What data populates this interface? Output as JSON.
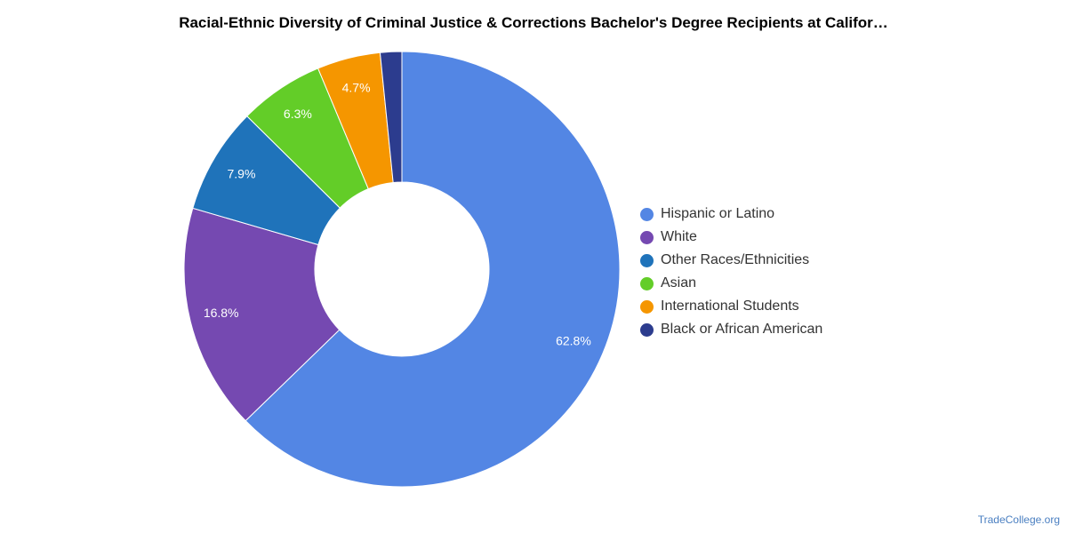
{
  "chart_data": {
    "type": "pie",
    "title": "Racial-Ethnic Diversity of Criminal Justice & Corrections Bachelor's Degree Recipients at Califor…",
    "hole": "donut",
    "legend_position": "right",
    "slices": [
      {
        "name": "Hispanic or Latino",
        "value": 62.8,
        "label": "62.8%",
        "color": "#5386e4"
      },
      {
        "name": "White",
        "value": 16.8,
        "label": "16.8%",
        "color": "#7549b1"
      },
      {
        "name": "Other Races/Ethnicities",
        "value": 7.9,
        "label": "7.9%",
        "color": "#1f73ba"
      },
      {
        "name": "Asian",
        "value": 6.3,
        "label": "6.3%",
        "color": "#63cd28"
      },
      {
        "name": "International Students",
        "value": 4.7,
        "label": "4.7%",
        "color": "#f59600"
      },
      {
        "name": "Black or African American",
        "value": 1.6,
        "label": "",
        "color": "#2c3c8e"
      }
    ]
  },
  "footer": {
    "credit": "TradeCollege.org"
  }
}
